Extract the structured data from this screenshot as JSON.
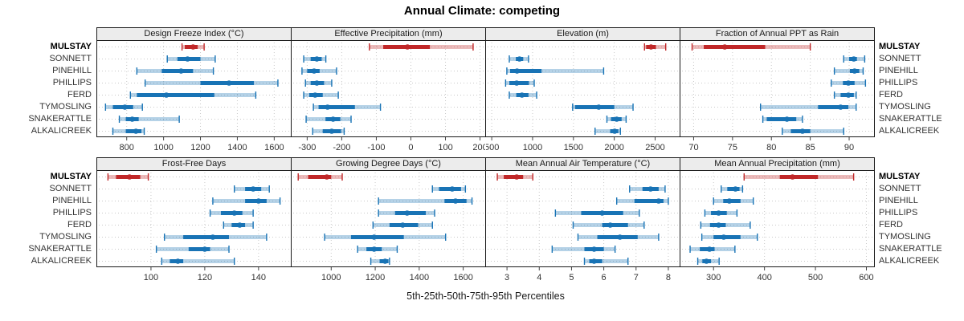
{
  "title": "Annual Climate: competing",
  "x_caption": "5th-25th-50th-75th-95th Percentiles",
  "sites": [
    "MULSTAY",
    "SONNETT",
    "PINEHILL",
    "PHILLIPS",
    "FERD",
    "TYMOSLING",
    "SNAKERATTLE",
    "ALKALICREEK"
  ],
  "highlight_site": "MULSTAY",
  "colors": {
    "highlight": "#c02728",
    "normal": "#1873b5",
    "band_opacity": 0.32,
    "grid": "#c9c9c9",
    "panel_border": "#1a1a1a",
    "strip_bg": "#ececec",
    "tick_text": "#333333"
  },
  "percentile_labels": [
    "5th",
    "25th",
    "50th",
    "75th",
    "95th"
  ],
  "chart_data": {
    "type": "dot-interval-plot",
    "layout": {
      "rows": 2,
      "cols": 4,
      "grid": true,
      "free_x_scales": true
    },
    "categories": [
      "MULSTAY",
      "SONNETT",
      "PINEHILL",
      "PHILLIPS",
      "FERD",
      "TYMOSLING",
      "SNAKERATTLE",
      "ALKALICREEK"
    ],
    "value_format": "percentiles [p5, p25, p50, p75, p95]",
    "panels": [
      {
        "label": "Design Freeze Index (°C)",
        "domain": [
          640,
          1690
        ],
        "ticks": [
          800,
          1000,
          1200,
          1400,
          1600
        ],
        "series": [
          [
            1100,
            1115,
            1160,
            1185,
            1220
          ],
          [
            1020,
            1075,
            1130,
            1200,
            1280
          ],
          [
            855,
            990,
            1095,
            1160,
            1270
          ],
          [
            900,
            1200,
            1355,
            1490,
            1620
          ],
          [
            820,
            855,
            1015,
            1275,
            1500
          ],
          [
            685,
            725,
            790,
            835,
            885
          ],
          [
            760,
            795,
            830,
            865,
            1085
          ],
          [
            725,
            795,
            850,
            880,
            895
          ]
        ]
      },
      {
        "label": "Effective Precipitation (mm)",
        "domain": [
          -345,
          215
        ],
        "ticks": [
          -300,
          -200,
          -100,
          0,
          100,
          200
        ],
        "series": [
          [
            -120,
            -80,
            -10,
            55,
            180
          ],
          [
            -310,
            -290,
            -272,
            -258,
            -246
          ],
          [
            -315,
            -300,
            -280,
            -264,
            -215
          ],
          [
            -305,
            -290,
            -272,
            -251,
            -229
          ],
          [
            -310,
            -294,
            -277,
            -255,
            -210
          ],
          [
            -282,
            -267,
            -241,
            -162,
            -88
          ],
          [
            -303,
            -247,
            -225,
            -204,
            -173
          ],
          [
            -284,
            -255,
            -229,
            -202,
            -193
          ]
        ]
      },
      {
        "label": "Elevation (m)",
        "domain": [
          430,
          2800
        ],
        "ticks": [
          500,
          1000,
          1500,
          2000,
          2500
        ],
        "series": [
          [
            2370,
            2390,
            2450,
            2510,
            2630
          ],
          [
            715,
            795,
            840,
            885,
            950
          ],
          [
            685,
            725,
            810,
            1110,
            1870
          ],
          [
            670,
            715,
            805,
            955,
            1020
          ],
          [
            715,
            800,
            870,
            950,
            1050
          ],
          [
            1490,
            1520,
            1810,
            2000,
            2230
          ],
          [
            1910,
            1960,
            2030,
            2090,
            2145
          ],
          [
            1765,
            1950,
            2005,
            2050,
            2075
          ]
        ]
      },
      {
        "label": "Fraction of Annual PPT as Rain",
        "domain": [
          68.3,
          93.2
        ],
        "ticks": [
          70,
          75,
          80,
          85,
          90
        ],
        "series": [
          [
            69.8,
            71.3,
            74.0,
            79.2,
            85.0
          ],
          [
            89.3,
            90.0,
            90.6,
            91.0,
            92.0
          ],
          [
            88.1,
            90.1,
            90.7,
            91.3,
            91.8
          ],
          [
            87.7,
            89.2,
            89.9,
            90.7,
            92.1
          ],
          [
            88.1,
            88.9,
            89.9,
            90.6,
            90.9
          ],
          [
            78.6,
            86.0,
            88.9,
            89.9,
            90.9
          ],
          [
            78.9,
            79.4,
            82.0,
            83.2,
            84.0
          ],
          [
            81.4,
            82.5,
            84.0,
            85.0,
            89.3
          ]
        ]
      },
      {
        "label": "Frost-Free Days",
        "domain": [
          80,
          152
        ],
        "ticks": [
          100,
          120,
          140
        ],
        "series": [
          [
            84,
            87,
            92,
            96,
            99
          ],
          [
            131,
            135,
            138,
            141,
            144
          ],
          [
            123,
            135,
            140,
            143,
            148
          ],
          [
            122,
            126,
            131,
            134,
            138
          ],
          [
            127,
            130,
            133,
            135,
            138
          ],
          [
            105,
            112,
            123,
            129,
            143
          ],
          [
            102,
            114,
            120,
            122,
            129
          ],
          [
            104,
            107,
            110,
            112,
            131
          ]
        ]
      },
      {
        "label": "Growing Degree Days (°C)",
        "domain": [
          820,
          1700
        ],
        "ticks": [
          1000,
          1200,
          1400,
          1600
        ],
        "series": [
          [
            850,
            895,
            980,
            1000,
            1050
          ],
          [
            1460,
            1490,
            1550,
            1590,
            1610
          ],
          [
            1215,
            1515,
            1565,
            1615,
            1640
          ],
          [
            1215,
            1290,
            1345,
            1430,
            1470
          ],
          [
            1190,
            1265,
            1325,
            1395,
            1460
          ],
          [
            970,
            1090,
            1195,
            1330,
            1520
          ],
          [
            1120,
            1160,
            1195,
            1230,
            1300
          ],
          [
            1180,
            1220,
            1245,
            1260,
            1265
          ]
        ]
      },
      {
        "label": "Mean Annual Air Temperature (°C)",
        "domain": [
          2.35,
          8.35
        ],
        "ticks": [
          3,
          4,
          5,
          6,
          7,
          8
        ],
        "series": [
          [
            2.7,
            2.9,
            3.3,
            3.5,
            3.8
          ],
          [
            6.8,
            7.2,
            7.45,
            7.7,
            7.9
          ],
          [
            6.4,
            6.95,
            7.7,
            7.85,
            8.0
          ],
          [
            4.5,
            5.3,
            5.95,
            6.6,
            7.1
          ],
          [
            5.05,
            5.95,
            6.2,
            6.75,
            7.25
          ],
          [
            5.2,
            5.8,
            6.5,
            7.05,
            7.7
          ],
          [
            4.4,
            5.4,
            5.7,
            6.0,
            6.35
          ],
          [
            5.4,
            5.55,
            5.7,
            5.95,
            6.75
          ]
        ]
      },
      {
        "label": "Mean Annual Precipitation (mm)",
        "domain": [
          235,
          615
        ],
        "ticks": [
          300,
          400,
          500,
          600
        ],
        "series": [
          [
            360,
            430,
            455,
            505,
            575
          ],
          [
            315,
            327,
            343,
            351,
            357
          ],
          [
            300,
            319,
            331,
            353,
            378
          ],
          [
            283,
            295,
            310,
            326,
            346
          ],
          [
            275,
            293,
            310,
            324,
            372
          ],
          [
            277,
            300,
            320,
            353,
            386
          ],
          [
            254,
            273,
            292,
            302,
            342
          ],
          [
            269,
            278,
            286,
            295,
            311
          ]
        ]
      }
    ]
  }
}
